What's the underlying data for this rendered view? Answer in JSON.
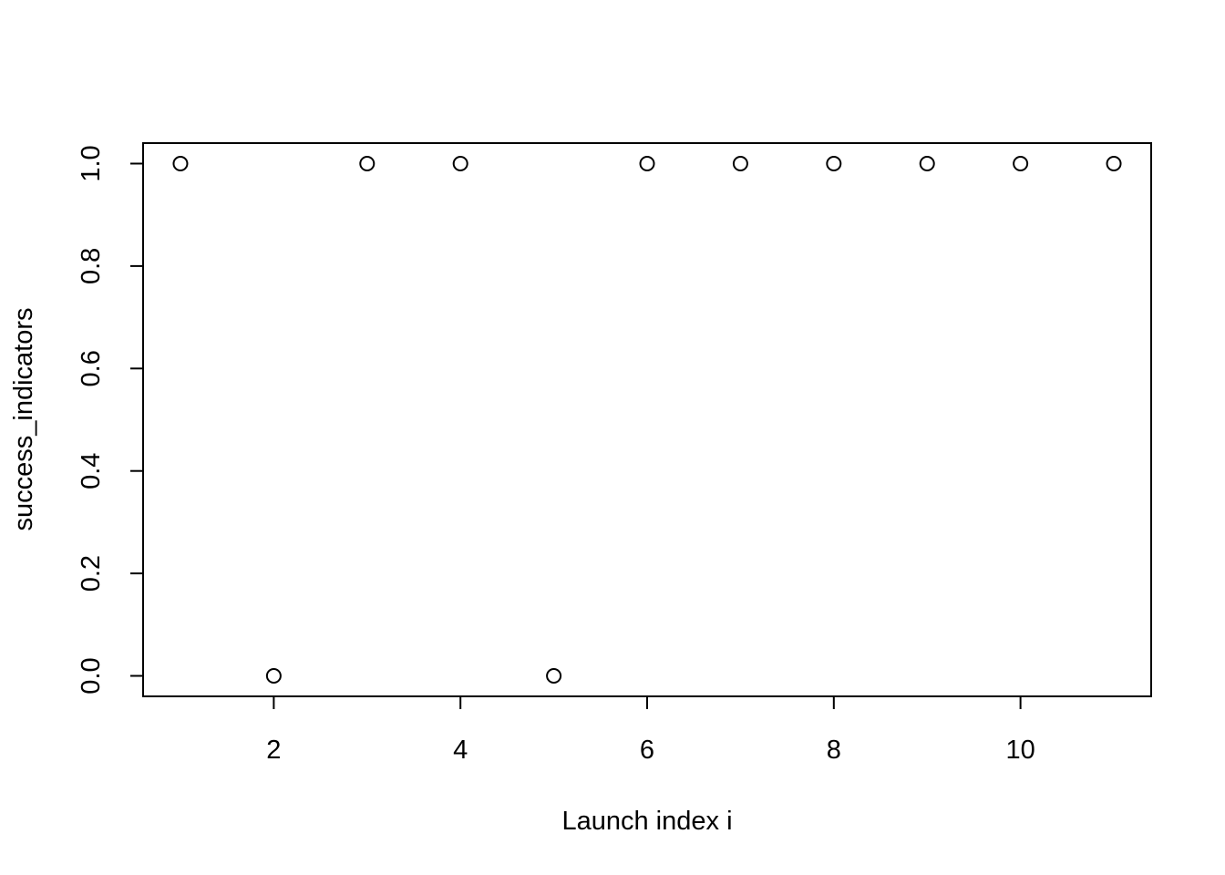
{
  "chart_data": {
    "type": "scatter",
    "title": "",
    "xlabel": "Launch index i",
    "ylabel": "success_indicators",
    "x": [
      1,
      2,
      3,
      4,
      5,
      6,
      7,
      8,
      9,
      10,
      11
    ],
    "y": [
      1,
      0,
      1,
      1,
      0,
      1,
      1,
      1,
      1,
      1,
      1
    ],
    "xlim": [
      0.6,
      11.4
    ],
    "ylim": [
      -0.04,
      1.04
    ],
    "xticks": [
      2,
      4,
      6,
      8,
      10
    ],
    "xtick_labels": [
      "2",
      "4",
      "6",
      "8",
      "10"
    ],
    "yticks": [
      0,
      0.2,
      0.4,
      0.6,
      0.8,
      1
    ],
    "ytick_labels": [
      "0.0",
      "0.2",
      "0.4",
      "0.6",
      "0.8",
      "1.0"
    ],
    "grid": false,
    "legend": "none",
    "marker": "open-circle",
    "colors": {
      "points": "#000000",
      "axes": "#000000",
      "background": "#ffffff"
    }
  }
}
